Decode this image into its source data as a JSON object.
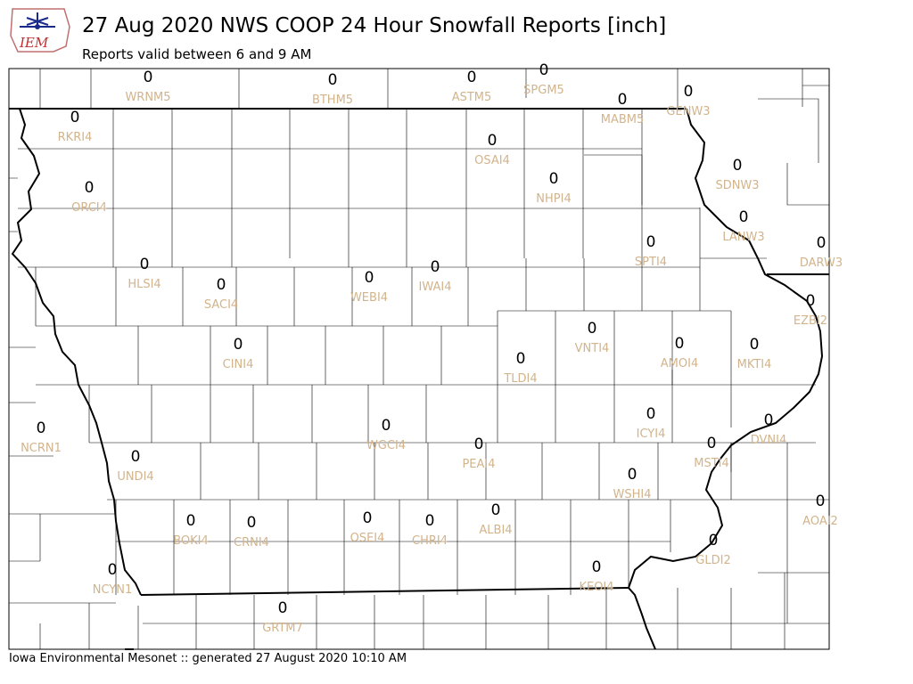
{
  "header": {
    "title": "27 Aug 2020 NWS COOP 24 Hour Snowfall Reports [inch]",
    "subtitle": "Reports valid between 6 and 9 AM",
    "logo_text": "IEM"
  },
  "footer": {
    "text": "Iowa Environmental Mesonet :: generated 27 August 2020 10:10 AM"
  },
  "colors": {
    "station_label": "#d2b48c",
    "value_text": "#000000",
    "borders": "#000000"
  },
  "stations": [
    {
      "id": "WRNM5",
      "value": "0"
    },
    {
      "id": "BTHM5",
      "value": "0"
    },
    {
      "id": "ASTM5",
      "value": "0"
    },
    {
      "id": "SPGM5",
      "value": "0"
    },
    {
      "id": "MABM5",
      "value": "0"
    },
    {
      "id": "GENW3",
      "value": "0"
    },
    {
      "id": "RKRI4",
      "value": "0"
    },
    {
      "id": "OSAI4",
      "value": "0"
    },
    {
      "id": "NHPI4",
      "value": "0"
    },
    {
      "id": "SDNW3",
      "value": "0"
    },
    {
      "id": "ORCI4",
      "value": "0"
    },
    {
      "id": "LANW3",
      "value": "0"
    },
    {
      "id": "SPTI4",
      "value": "0"
    },
    {
      "id": "DARW3",
      "value": "0"
    },
    {
      "id": "HLSI4",
      "value": "0"
    },
    {
      "id": "SACI4",
      "value": "0"
    },
    {
      "id": "WEBI4",
      "value": "0"
    },
    {
      "id": "IWAI4",
      "value": "0"
    },
    {
      "id": "EZBI2",
      "value": "0"
    },
    {
      "id": "VNTI4",
      "value": "0"
    },
    {
      "id": "CINI4",
      "value": "0"
    },
    {
      "id": "AMOI4",
      "value": "0"
    },
    {
      "id": "MKTI4",
      "value": "0"
    },
    {
      "id": "TLDI4",
      "value": "0"
    },
    {
      "id": "ICYI4",
      "value": "0"
    },
    {
      "id": "NCRN1",
      "value": "0"
    },
    {
      "id": "WGCI4",
      "value": "0"
    },
    {
      "id": "DVNI4",
      "value": "0"
    },
    {
      "id": "PEAI4",
      "value": "0"
    },
    {
      "id": "MSTI4",
      "value": "0"
    },
    {
      "id": "UNDI4",
      "value": "0"
    },
    {
      "id": "WSHI4",
      "value": "0"
    },
    {
      "id": "AOAI2",
      "value": "0"
    },
    {
      "id": "ALBI4",
      "value": "0"
    },
    {
      "id": "BOKI4",
      "value": "0"
    },
    {
      "id": "CRNI4",
      "value": "0"
    },
    {
      "id": "OSEI4",
      "value": "0"
    },
    {
      "id": "CHRI4",
      "value": "0"
    },
    {
      "id": "GLDI2",
      "value": "0"
    },
    {
      "id": "NCYN1",
      "value": "0"
    },
    {
      "id": "KEOI4",
      "value": "0"
    },
    {
      "id": "GRTM7",
      "value": "0"
    }
  ]
}
